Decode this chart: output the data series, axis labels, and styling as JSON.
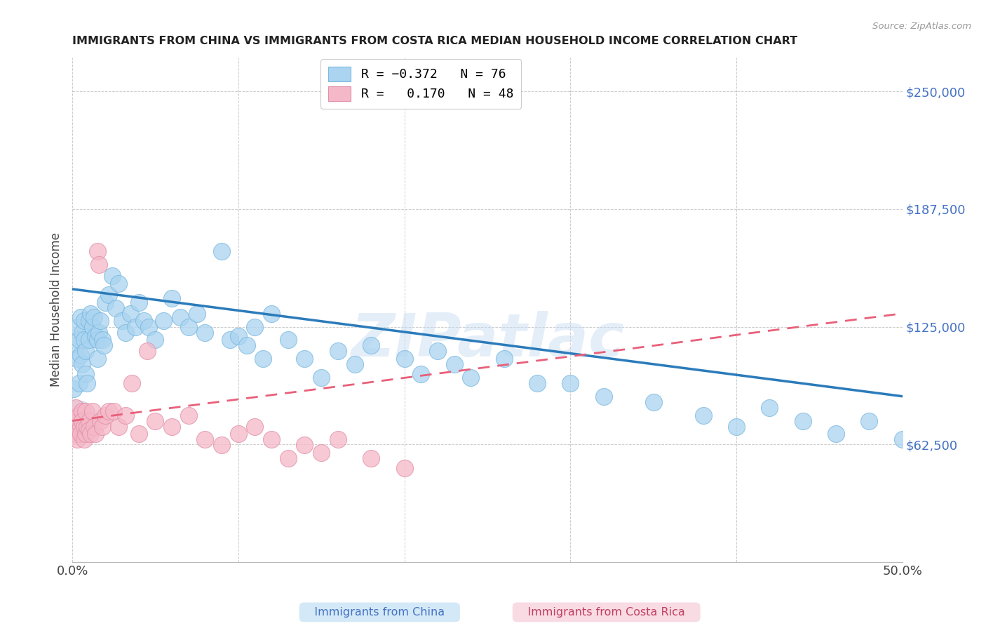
{
  "title": "IMMIGRANTS FROM CHINA VS IMMIGRANTS FROM COSTA RICA MEDIAN HOUSEHOLD INCOME CORRELATION CHART",
  "source": "Source: ZipAtlas.com",
  "ylabel": "Median Household Income",
  "yticks": [
    0,
    62500,
    125000,
    187500,
    250000
  ],
  "ytick_labels": [
    "",
    "$62,500",
    "$125,000",
    "$187,500",
    "$250,000"
  ],
  "xmin": 0.0,
  "xmax": 0.5,
  "ymin": 0,
  "ymax": 268000,
  "watermark": "ZIPatlас",
  "series1_color": "#aad4f0",
  "series2_color": "#f5b8c8",
  "trendline1_color": "#2b7bba",
  "trendline2_color": "#e8607a",
  "background_color": "#ffffff",
  "china_x": [
    0.001,
    0.002,
    0.003,
    0.003,
    0.004,
    0.004,
    0.005,
    0.005,
    0.006,
    0.006,
    0.007,
    0.007,
    0.008,
    0.008,
    0.009,
    0.01,
    0.01,
    0.011,
    0.012,
    0.013,
    0.014,
    0.015,
    0.015,
    0.016,
    0.017,
    0.018,
    0.019,
    0.02,
    0.022,
    0.024,
    0.026,
    0.028,
    0.03,
    0.032,
    0.035,
    0.038,
    0.04,
    0.043,
    0.046,
    0.05,
    0.055,
    0.06,
    0.065,
    0.07,
    0.075,
    0.08,
    0.09,
    0.095,
    0.1,
    0.105,
    0.11,
    0.115,
    0.12,
    0.13,
    0.14,
    0.15,
    0.16,
    0.17,
    0.18,
    0.2,
    0.21,
    0.22,
    0.23,
    0.24,
    0.26,
    0.28,
    0.3,
    0.32,
    0.35,
    0.38,
    0.4,
    0.42,
    0.44,
    0.46,
    0.48,
    0.5
  ],
  "china_y": [
    92000,
    115000,
    108000,
    125000,
    118000,
    95000,
    130000,
    110000,
    105000,
    122000,
    118000,
    128000,
    112000,
    100000,
    95000,
    128000,
    118000,
    132000,
    125000,
    130000,
    120000,
    118000,
    108000,
    122000,
    128000,
    118000,
    115000,
    138000,
    142000,
    152000,
    135000,
    148000,
    128000,
    122000,
    132000,
    125000,
    138000,
    128000,
    125000,
    118000,
    128000,
    140000,
    130000,
    125000,
    132000,
    122000,
    165000,
    118000,
    120000,
    115000,
    125000,
    108000,
    132000,
    118000,
    108000,
    98000,
    112000,
    105000,
    115000,
    108000,
    100000,
    112000,
    105000,
    98000,
    108000,
    95000,
    95000,
    88000,
    85000,
    78000,
    72000,
    82000,
    75000,
    68000,
    75000,
    65000
  ],
  "costa_rica_x": [
    0.001,
    0.002,
    0.002,
    0.003,
    0.003,
    0.004,
    0.004,
    0.005,
    0.005,
    0.006,
    0.006,
    0.007,
    0.007,
    0.008,
    0.008,
    0.009,
    0.01,
    0.01,
    0.011,
    0.012,
    0.013,
    0.014,
    0.015,
    0.016,
    0.017,
    0.018,
    0.02,
    0.022,
    0.025,
    0.028,
    0.032,
    0.036,
    0.04,
    0.045,
    0.05,
    0.06,
    0.07,
    0.08,
    0.09,
    0.1,
    0.11,
    0.12,
    0.13,
    0.14,
    0.15,
    0.16,
    0.18,
    0.2
  ],
  "costa_rica_y": [
    72000,
    68000,
    82000,
    75000,
    65000,
    70000,
    78000,
    72000,
    68000,
    80000,
    75000,
    72000,
    65000,
    80000,
    68000,
    72000,
    75000,
    70000,
    68000,
    80000,
    72000,
    68000,
    165000,
    158000,
    75000,
    72000,
    78000,
    80000,
    80000,
    72000,
    78000,
    95000,
    68000,
    112000,
    75000,
    72000,
    78000,
    65000,
    62000,
    68000,
    72000,
    65000,
    55000,
    62000,
    58000,
    65000,
    55000,
    50000
  ],
  "china_trend": [
    145000,
    88000
  ],
  "cr_trend_start_x": 0.0,
  "cr_trend_end_x": 0.5,
  "cr_trend": [
    75000,
    132000
  ]
}
